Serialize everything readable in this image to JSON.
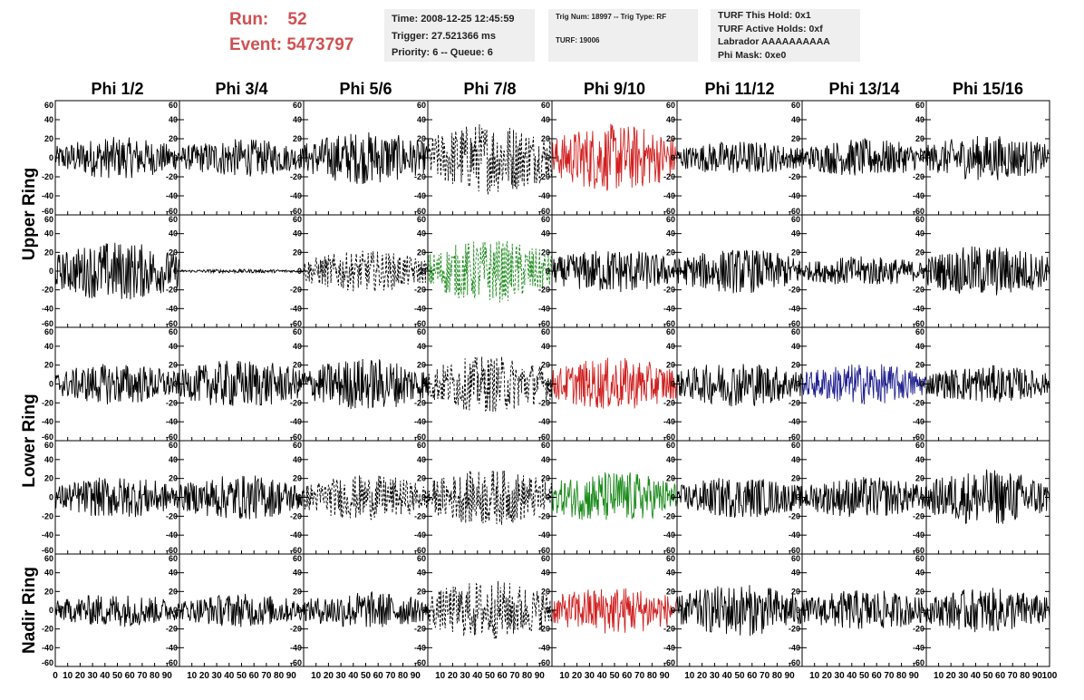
{
  "header": {
    "run_label": "Run:",
    "run_value": "52",
    "event_label": "Event:",
    "event_value": "5473797"
  },
  "info_boxes": {
    "time": "Time: 2008-12-25 12:45:59",
    "trigger": "Trigger: 27.521366 ms",
    "priority": "Priority: 6 -- Queue: 6",
    "trig_num": "Trig Num: 18997 -- Trig Type: RF",
    "turf": "TURF: 19006",
    "turf_this_hold": "TURF This Hold: 0x1",
    "turf_active_holds": "TURF Active Holds: 0xf",
    "labrador": "Labrador AAAAAAAAAA",
    "phi_mask": "Phi Mask: 0xe0"
  },
  "colors": {
    "header_text": "#d05050",
    "info_box_bg": "#efefef",
    "trace_default": "#000000",
    "trace_red": "#d02020",
    "trace_green": "#1a8a1a",
    "trace_blue": "#202090"
  },
  "chart_data": {
    "type": "line",
    "title": "",
    "columns": [
      "Phi 1/2",
      "Phi 3/4",
      "Phi 5/6",
      "Phi 7/8",
      "Phi 9/10",
      "Phi 11/12",
      "Phi 13/14",
      "Phi 15/16"
    ],
    "row_groups": [
      {
        "label": "Upper Ring",
        "rows": [
          0,
          1
        ]
      },
      {
        "label": "Lower Ring",
        "rows": [
          2,
          3
        ]
      },
      {
        "label": "Nadir Ring",
        "rows": [
          4
        ]
      }
    ],
    "xlim": [
      0,
      100
    ],
    "ylim": [
      -60,
      60
    ],
    "y_ticks": [
      -60,
      -40,
      -20,
      0,
      20,
      40,
      60
    ],
    "x_ticks": [
      0,
      10,
      20,
      30,
      40,
      50,
      60,
      70,
      80,
      90,
      100
    ],
    "grid": false,
    "panels": [
      [
        {
          "style": "solid",
          "color": "black",
          "amp": 22
        },
        {
          "style": "solid",
          "color": "black",
          "amp": 20
        },
        {
          "style": "solid",
          "color": "black",
          "amp": 28
        },
        {
          "style": "dashed",
          "color": "black",
          "amp": 38
        },
        {
          "style": "solid",
          "color": "red",
          "amp": 36
        },
        {
          "style": "solid",
          "color": "black",
          "amp": 18
        },
        {
          "style": "solid",
          "color": "black",
          "amp": 20
        },
        {
          "style": "solid",
          "color": "black",
          "amp": 24
        }
      ],
      [
        {
          "style": "solid",
          "color": "black",
          "amp": 32
        },
        {
          "style": "solid",
          "color": "black",
          "amp": 2
        },
        {
          "style": "dashed",
          "color": "black",
          "amp": 22
        },
        {
          "style": "dashed",
          "color": "green",
          "amp": 34
        },
        {
          "style": "solid",
          "color": "black",
          "amp": 24
        },
        {
          "style": "solid",
          "color": "black",
          "amp": 24
        },
        {
          "style": "solid",
          "color": "black",
          "amp": 16
        },
        {
          "style": "solid",
          "color": "black",
          "amp": 28
        }
      ],
      [
        {
          "style": "solid",
          "color": "black",
          "amp": 22
        },
        {
          "style": "solid",
          "color": "black",
          "amp": 26
        },
        {
          "style": "solid",
          "color": "black",
          "amp": 28
        },
        {
          "style": "dashed",
          "color": "black",
          "amp": 30
        },
        {
          "style": "solid",
          "color": "red",
          "amp": 28
        },
        {
          "style": "solid",
          "color": "black",
          "amp": 24
        },
        {
          "style": "solid",
          "color": "blue",
          "amp": 22
        },
        {
          "style": "solid",
          "color": "black",
          "amp": 20
        }
      ],
      [
        {
          "style": "solid",
          "color": "black",
          "amp": 22
        },
        {
          "style": "solid",
          "color": "black",
          "amp": 24
        },
        {
          "style": "dashed",
          "color": "black",
          "amp": 24
        },
        {
          "style": "dashed",
          "color": "black",
          "amp": 30
        },
        {
          "style": "solid",
          "color": "green",
          "amp": 28
        },
        {
          "style": "solid",
          "color": "black",
          "amp": 22
        },
        {
          "style": "solid",
          "color": "black",
          "amp": 22
        },
        {
          "style": "solid",
          "color": "black",
          "amp": 30
        }
      ],
      [
        {
          "style": "solid",
          "color": "black",
          "amp": 18
        },
        {
          "style": "solid",
          "color": "black",
          "amp": 18
        },
        {
          "style": "solid",
          "color": "black",
          "amp": 20
        },
        {
          "style": "dashed",
          "color": "black",
          "amp": 32
        },
        {
          "style": "solid",
          "color": "red",
          "amp": 26
        },
        {
          "style": "solid",
          "color": "black",
          "amp": 28
        },
        {
          "style": "solid",
          "color": "black",
          "amp": 22
        },
        {
          "style": "solid",
          "color": "black",
          "amp": 24
        }
      ]
    ]
  }
}
